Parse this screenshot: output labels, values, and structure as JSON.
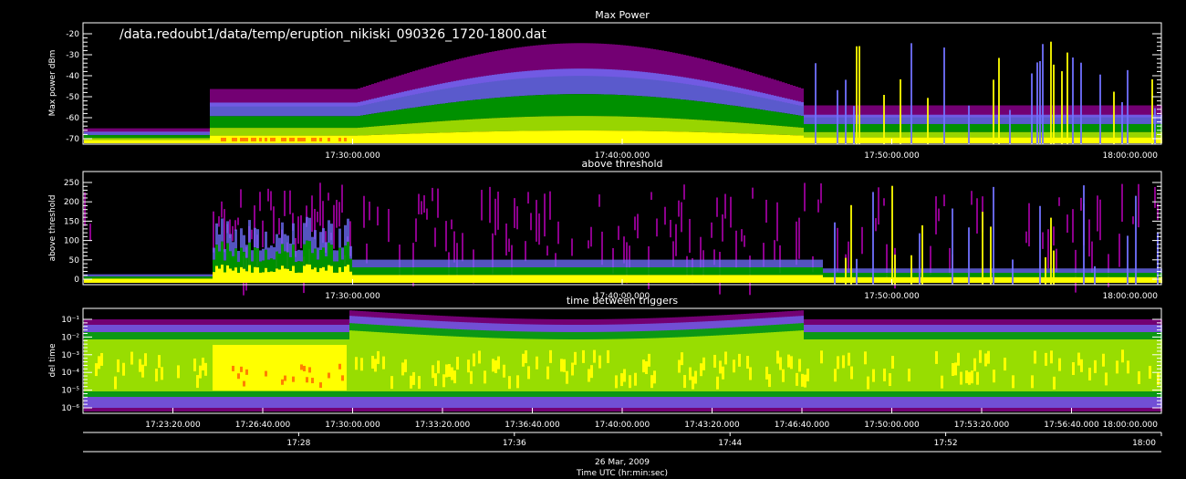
{
  "chart_data": [
    {
      "type": "heatmap",
      "title": "Max Power",
      "ylabel": "Max power dBm",
      "annotation": "/data.redoubt1/data/temp/eruption_nikiski_090326_1720-1800.dat",
      "yticks": [
        "-20",
        "-30",
        "-40",
        "-50",
        "-60",
        "-70"
      ],
      "xticks": [
        "17:30:00.000",
        "17:40:00.000",
        "17:50:00.000",
        "18:00:00.000"
      ]
    },
    {
      "type": "heatmap",
      "title": "above threshold",
      "ylabel": "above threshold",
      "yticks": [
        "250",
        "200",
        "150",
        "100",
        "50",
        "0"
      ],
      "xticks": [
        "17:30:00.000",
        "17:40:00.000",
        "17:50:00.000",
        "18:00:00.000"
      ]
    },
    {
      "type": "heatmap",
      "title": "time between triggers",
      "ylabel": "del time",
      "scale": "log",
      "yticks": [
        "10⁻¹",
        "10⁻²",
        "10⁻³",
        "10⁻⁴",
        "10⁻⁵",
        "10⁻⁶"
      ],
      "xticks": [
        "17:23:20.000",
        "17:26:40.000",
        "17:30:00.000",
        "17:33:20.000",
        "17:36:40.000",
        "17:40:00.000",
        "17:43:20.000",
        "17:46:40.000",
        "17:50:00.000",
        "17:53:20.000",
        "17:56:40.000",
        "18:00:00.000"
      ]
    }
  ],
  "bottom_axis": {
    "ticks": [
      "17:28",
      "17:36",
      "17:44",
      "17:52",
      "18:00"
    ],
    "date": "26 Mar, 2009",
    "label": "Time UTC (hr:min:sec)"
  },
  "colors": {
    "background": "#000000",
    "axes": "#ffffff",
    "colormap": [
      "#ff00ff",
      "#7070ff",
      "#00a000",
      "#a0e000",
      "#ffff00",
      "#ff8000",
      "#ff0000"
    ]
  }
}
